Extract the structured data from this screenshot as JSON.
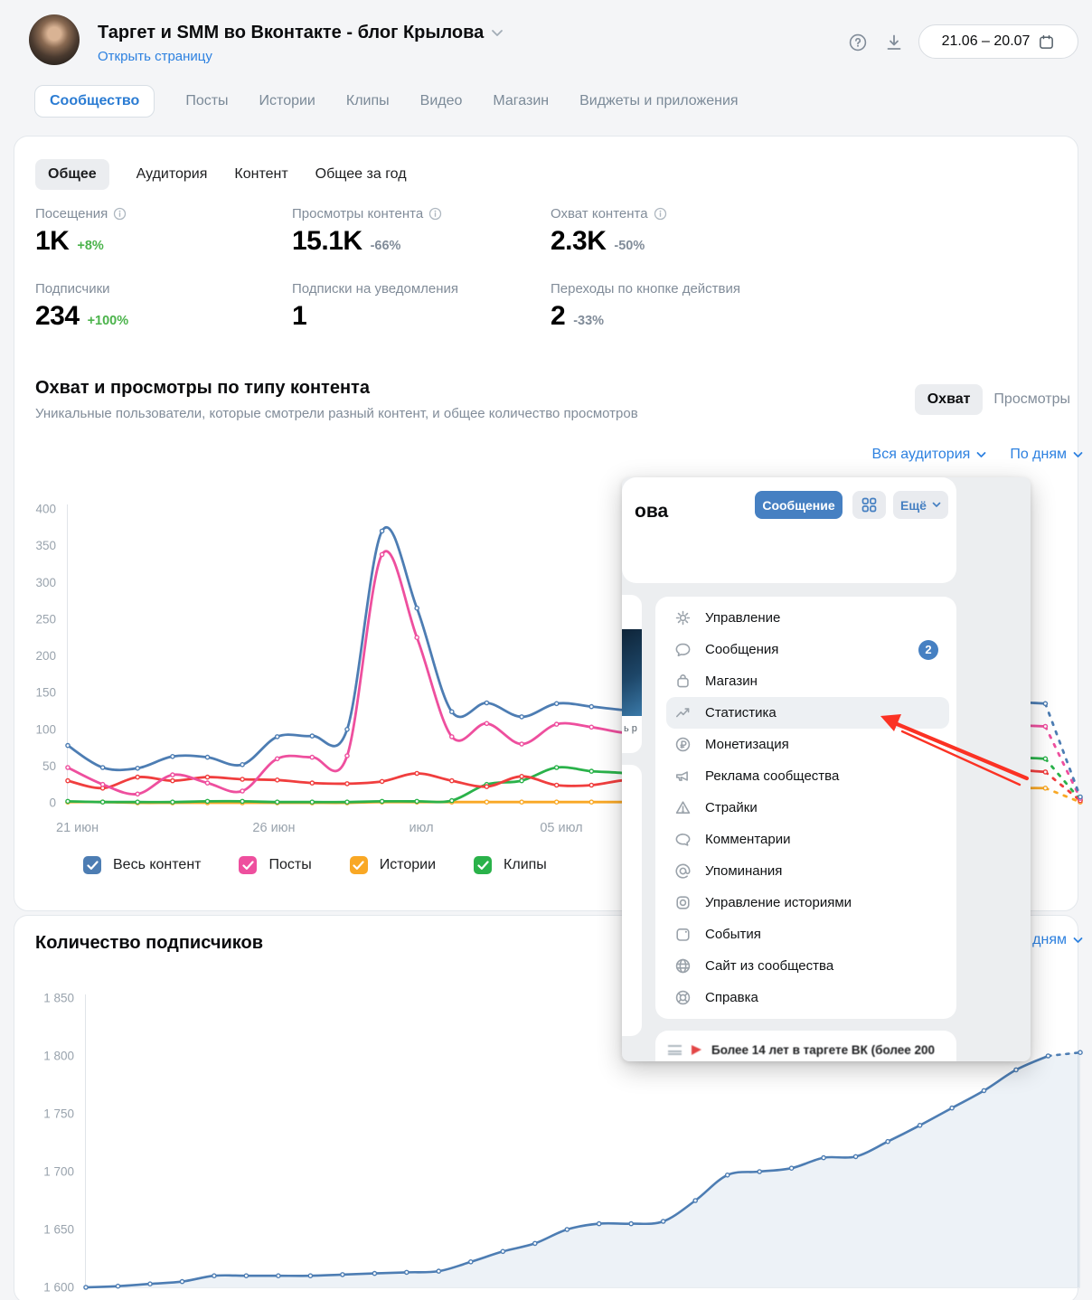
{
  "header": {
    "title": "Таргет и SMM во Вконтакте - блог Крылова",
    "open_link": "Открыть страницу",
    "date_range": "21.06 – 20.07"
  },
  "tabs": [
    "Сообщество",
    "Посты",
    "Истории",
    "Клипы",
    "Видео",
    "Магазин",
    "Виджеты и приложения"
  ],
  "subtabs": [
    "Общее",
    "Аудитория",
    "Контент",
    "Общее за год"
  ],
  "stats": [
    {
      "label": "Посещения",
      "info": true,
      "value": "1K",
      "delta": "+8%",
      "delta_color": "green"
    },
    {
      "label": "Просмотры контента",
      "info": true,
      "value": "15.1K",
      "delta": "-66%",
      "delta_color": "gray"
    },
    {
      "label": "Охват контента",
      "info": true,
      "value": "2.3K",
      "delta": "-50%",
      "delta_color": "gray"
    },
    {
      "label": "Подписчики",
      "info": false,
      "value": "234",
      "delta": "+100%",
      "delta_color": "green"
    },
    {
      "label": "Подписки на уведомления",
      "info": false,
      "value": "1",
      "delta": "",
      "delta_color": ""
    },
    {
      "label": "Переходы по кнопке действия",
      "info": false,
      "value": "2",
      "delta": "-33%",
      "delta_color": "gray"
    }
  ],
  "section1": {
    "title": "Охват и просмотры по типу контента",
    "subtitle": "Уникальные пользователи, которые смотрели разный контент, и общее количество просмотров",
    "toggle": [
      "Охват",
      "Просмотры"
    ],
    "filters": [
      "Вся аудитория",
      "По дням"
    ]
  },
  "legend": [
    {
      "label": "Весь контент",
      "color": "#4d7db3"
    },
    {
      "label": "Посты",
      "color": "#ee4f9e"
    },
    {
      "label": "Истории",
      "color": "#f9a825"
    },
    {
      "label": "Клипы",
      "color": "#2ab24a"
    }
  ],
  "section2": {
    "title": "Количество подписчиков",
    "filter": "По дням"
  },
  "popup": {
    "community_name_fragment": "ова",
    "message_button": "Сообщение",
    "more_button": "Ещё",
    "left_text_fragment": "ь р",
    "menu": [
      {
        "label": "Управление",
        "icon": "gear"
      },
      {
        "label": "Сообщения",
        "icon": "chat",
        "badge": "2"
      },
      {
        "label": "Магазин",
        "icon": "bag"
      },
      {
        "label": "Статистика",
        "icon": "stats",
        "highlight": true
      },
      {
        "label": "Монетизация",
        "icon": "ruble"
      },
      {
        "label": "Реклама сообщества",
        "icon": "megaphone"
      },
      {
        "label": "Страйки",
        "icon": "warning"
      },
      {
        "label": "Комментарии",
        "icon": "comment"
      },
      {
        "label": "Упоминания",
        "icon": "at"
      },
      {
        "label": "Управление историями",
        "icon": "stories"
      },
      {
        "label": "События",
        "icon": "events"
      },
      {
        "label": "Сайт из сообщества",
        "icon": "globe"
      },
      {
        "label": "Справка",
        "icon": "help"
      }
    ],
    "bottom_card_text": "Более 14 лет в таргете ВК (более 200"
  },
  "colors": {
    "accent_blue": "#2d81e0",
    "green": "#4bb34b",
    "muted": "#818c99",
    "vk_button_blue": "#4680c2",
    "arrow_red": "#fb3224"
  },
  "chart_data": [
    {
      "type": "line",
      "title": "Охват и просмотры по типу контента",
      "x_tick_labels": [
        "21 июн",
        "26 июн",
        "июл",
        "05 июл"
      ],
      "ylim": [
        0,
        400
      ],
      "yticks": [
        0,
        50,
        100,
        150,
        200,
        250,
        300,
        350,
        400
      ],
      "grid": false,
      "legend_position": "bottom",
      "dashed_last_segment": true,
      "series": [
        {
          "name": "Истории",
          "color": "#f9a825",
          "values": [
            1,
            1,
            0,
            0,
            0,
            0,
            0,
            0,
            0,
            1,
            1,
            1,
            1,
            1,
            1,
            1,
            1,
            1,
            2,
            2,
            3,
            5,
            8,
            10,
            13,
            16,
            18,
            20,
            20,
            1
          ]
        },
        {
          "name": "Клипы",
          "color": "#2ab24a",
          "values": [
            2,
            1,
            1,
            1,
            2,
            2,
            1,
            1,
            1,
            2,
            2,
            3,
            25,
            30,
            48,
            43,
            40,
            31,
            35,
            40,
            45,
            50,
            54,
            58,
            60,
            62,
            63,
            62,
            60,
            4
          ]
        },
        {
          "name": "Видео",
          "color": "#f03e3e",
          "values": [
            30,
            20,
            35,
            30,
            35,
            32,
            31,
            27,
            26,
            29,
            40,
            30,
            22,
            36,
            24,
            24,
            31,
            30,
            29,
            30,
            32,
            34,
            36,
            38,
            40,
            42,
            44,
            45,
            42,
            3
          ]
        },
        {
          "name": "Посты",
          "color": "#ee4f9e",
          "values": [
            48,
            25,
            12,
            38,
            27,
            16,
            60,
            62,
            64,
            338,
            225,
            90,
            108,
            80,
            107,
            103,
            95,
            98,
            102,
            108,
            112,
            115,
            118,
            115,
            112,
            110,
            108,
            106,
            104,
            6
          ]
        },
        {
          "name": "Весь контент",
          "color": "#4d7db3",
          "values": [
            78,
            48,
            47,
            63,
            62,
            52,
            90,
            91,
            100,
            370,
            265,
            124,
            136,
            117,
            135,
            131,
            126,
            124,
            129,
            135,
            142,
            150,
            158,
            163,
            160,
            152,
            144,
            138,
            135,
            8
          ]
        }
      ]
    },
    {
      "type": "area",
      "title": "Количество подписчиков",
      "ylim": [
        1600,
        1850
      ],
      "yticks": [
        1600,
        1650,
        1700,
        1750,
        1800,
        1850
      ],
      "ytick_labels": [
        "1 600",
        "1 650",
        "1 700",
        "1 750",
        "1 800",
        "1 850"
      ],
      "grid": false,
      "line_color": "#4d7db3",
      "fill_color": "rgba(77,125,179,0.10)",
      "dashed_last_segment": true,
      "values": [
        1600,
        1601,
        1603,
        1605,
        1610,
        1610,
        1610,
        1610,
        1611,
        1612,
        1613,
        1614,
        1622,
        1631,
        1638,
        1650,
        1655,
        1655,
        1657,
        1675,
        1697,
        1700,
        1703,
        1712,
        1713,
        1726,
        1740,
        1755,
        1770,
        1788,
        1800,
        1803
      ]
    }
  ]
}
